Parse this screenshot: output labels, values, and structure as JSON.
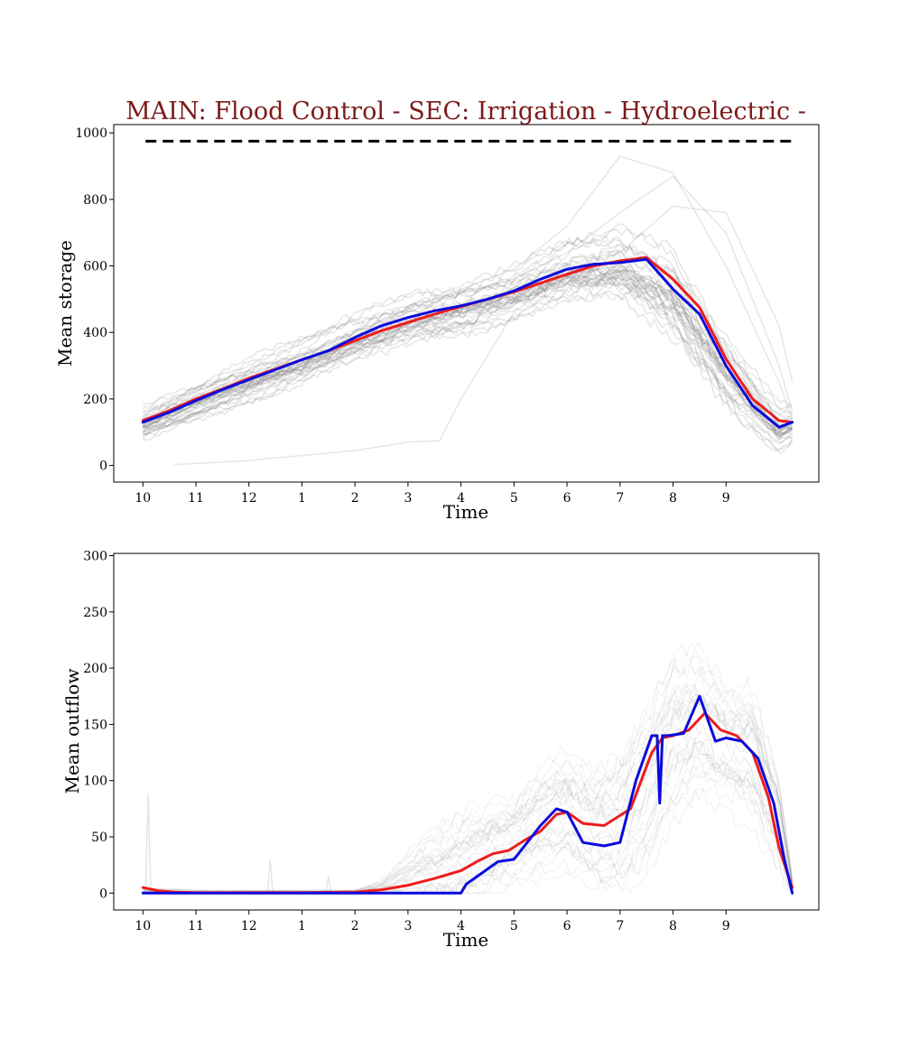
{
  "title": "MAIN: Flood Control - SEC: Irrigation - Hydroelectric -",
  "colors": {
    "title": "#7d1a1a",
    "mean_red": "#ee1c1c",
    "mean_blue": "#0b0bdd",
    "ensemble": "#808080",
    "capacity": "#000000"
  },
  "chart_data": [
    {
      "type": "line",
      "ylabel": "Mean storage",
      "xlabel": "Time",
      "xlim": [
        -0.55,
        12.75
      ],
      "ylim": [
        -50,
        1025
      ],
      "x_ticks": [
        0,
        1,
        2,
        3,
        4,
        5,
        6,
        7,
        8,
        9,
        10,
        11
      ],
      "x_tick_labels": [
        "10",
        "11",
        "12",
        "1",
        "2",
        "3",
        "4",
        "5",
        "6",
        "7",
        "8",
        "9"
      ],
      "y_ticks": [
        0,
        200,
        400,
        600,
        800,
        1000
      ],
      "y_tick_labels": [
        "0",
        "200",
        "400",
        "600",
        "800",
        "1000"
      ],
      "grid": false,
      "reference_lines": [
        {
          "style": "dashed",
          "color": "#000000",
          "y": 975,
          "x_start": 0.05,
          "x_end": 12.25
        }
      ],
      "series": [
        {
          "color": "#ee1c1c",
          "x": [
            0,
            0.5,
            1,
            1.5,
            2,
            2.5,
            3,
            3.5,
            4,
            4.5,
            5,
            5.5,
            6,
            6.5,
            7,
            7.5,
            8,
            8.5,
            9,
            9.5,
            10,
            10.5,
            11,
            11.5,
            12,
            12.25
          ],
          "values": [
            135,
            165,
            200,
            230,
            262,
            290,
            318,
            345,
            375,
            405,
            430,
            455,
            478,
            500,
            522,
            548,
            575,
            600,
            615,
            625,
            560,
            475,
            320,
            200,
            135,
            130
          ]
        },
        {
          "color": "#0b0bdd",
          "x": [
            0,
            0.5,
            1,
            1.5,
            2,
            2.5,
            3,
            3.5,
            4,
            4.5,
            5,
            5.5,
            6,
            6.5,
            7,
            7.5,
            8,
            8.5,
            9,
            9.5,
            10,
            10.5,
            11,
            11.5,
            12,
            12.25
          ],
          "values": [
            130,
            160,
            195,
            228,
            258,
            288,
            318,
            345,
            385,
            420,
            445,
            465,
            480,
            500,
            525,
            560,
            590,
            605,
            610,
            620,
            530,
            455,
            300,
            180,
            115,
            130
          ]
        }
      ],
      "ensemble_band": {
        "color": "#808080",
        "x": [
          0,
          1,
          2,
          3,
          4,
          5,
          6,
          7,
          8,
          9,
          10,
          11,
          12,
          12.25
        ],
        "center": [
          130,
          200,
          262,
          318,
          385,
          445,
          480,
          525,
          590,
          610,
          530,
          300,
          115,
          130
        ],
        "spread": [
          60,
          70,
          75,
          80,
          85,
          90,
          95,
          90,
          110,
          130,
          160,
          130,
          80,
          70
        ],
        "peaked_traces": [
          [
            100,
            170,
            240,
            310,
            390,
            460,
            520,
            560,
            640,
            760,
            870,
            700,
            300,
            160
          ],
          [
            140,
            210,
            275,
            330,
            400,
            470,
            530,
            590,
            720,
            930,
            880,
            600,
            250,
            140
          ],
          [
            90,
            155,
            215,
            280,
            340,
            410,
            470,
            520,
            580,
            640,
            780,
            760,
            420,
            250
          ]
        ],
        "low_trace": {
          "x": [
            0.6,
            2,
            3,
            4,
            4.4,
            5,
            5.6,
            6,
            6.5,
            7,
            7.5,
            8,
            8.5,
            9,
            10,
            11,
            12,
            12.25
          ],
          "values": [
            2,
            15,
            30,
            45,
            55,
            70,
            75,
            200,
            330,
            460,
            520,
            570,
            590,
            600,
            520,
            330,
            120,
            110
          ]
        }
      }
    },
    {
      "type": "line",
      "ylabel": "Mean outflow",
      "xlabel": "Time",
      "xlim": [
        -0.55,
        12.75
      ],
      "ylim": [
        -15,
        302
      ],
      "x_ticks": [
        0,
        1,
        2,
        3,
        4,
        5,
        6,
        7,
        8,
        9,
        10,
        11
      ],
      "x_tick_labels": [
        "10",
        "11",
        "12",
        "1",
        "2",
        "3",
        "4",
        "5",
        "6",
        "7",
        "8",
        "9"
      ],
      "y_ticks": [
        0,
        50,
        100,
        150,
        200,
        250,
        300
      ],
      "y_tick_labels": [
        "0",
        "50",
        "100",
        "150",
        "200",
        "250",
        "300"
      ],
      "grid": false,
      "series": [
        {
          "color": "#ee1c1c",
          "x": [
            0,
            0.1,
            0.3,
            0.6,
            1,
            2,
            3,
            4,
            4.5,
            5,
            5.5,
            6,
            6.3,
            6.6,
            6.9,
            7.2,
            7.5,
            7.8,
            8,
            8.3,
            8.7,
            9.2,
            9.4,
            9.6,
            9.8,
            10,
            10.3,
            10.6,
            10.9,
            11.2,
            11.5,
            11.8,
            12,
            12.25
          ],
          "values": [
            5,
            4,
            2,
            1,
            0.5,
            0.5,
            0.5,
            1,
            3,
            7,
            13,
            20,
            28,
            35,
            38,
            47,
            55,
            70,
            72,
            62,
            60,
            75,
            100,
            125,
            138,
            140,
            145,
            160,
            145,
            140,
            125,
            85,
            40,
            5
          ]
        },
        {
          "color": "#0b0bdd",
          "x": [
            0,
            0.5,
            1,
            2,
            3,
            4,
            5,
            6,
            6.1,
            6.4,
            6.7,
            7,
            7.5,
            7.8,
            8,
            8.3,
            8.7,
            9,
            9.3,
            9.6,
            9.7,
            9.75,
            9.8,
            9.9,
            10.2,
            10.5,
            10.8,
            11,
            11.3,
            11.6,
            11.9,
            12.1,
            12.25
          ],
          "values": [
            0,
            0,
            0,
            0,
            0,
            0,
            0,
            0,
            8,
            18,
            28,
            30,
            60,
            75,
            72,
            45,
            42,
            45,
            100,
            140,
            140,
            80,
            140,
            140,
            142,
            175,
            135,
            138,
            135,
            120,
            80,
            30,
            0
          ]
        }
      ],
      "ensemble_band": {
        "color": "#808080",
        "x": [
          0,
          1,
          2,
          3,
          4,
          4.5,
          5,
          5.5,
          6,
          6.5,
          7,
          7.5,
          8,
          8.5,
          9,
          9.5,
          10,
          10.5,
          11,
          11.5,
          12,
          12.25
        ],
        "center": [
          0,
          0,
          0,
          0,
          0,
          2,
          8,
          15,
          25,
          35,
          45,
          60,
          70,
          55,
          60,
          90,
          140,
          150,
          130,
          120,
          60,
          5
        ],
        "spread": [
          5,
          3,
          3,
          3,
          3,
          10,
          30,
          45,
          50,
          50,
          45,
          55,
          60,
          60,
          70,
          80,
          80,
          70,
          60,
          70,
          50,
          10
        ],
        "spikes": [
          {
            "x": 0.1,
            "value": 88
          },
          {
            "x": 2.4,
            "value": 30
          },
          {
            "x": 3.5,
            "value": 15
          }
        ]
      }
    }
  ]
}
